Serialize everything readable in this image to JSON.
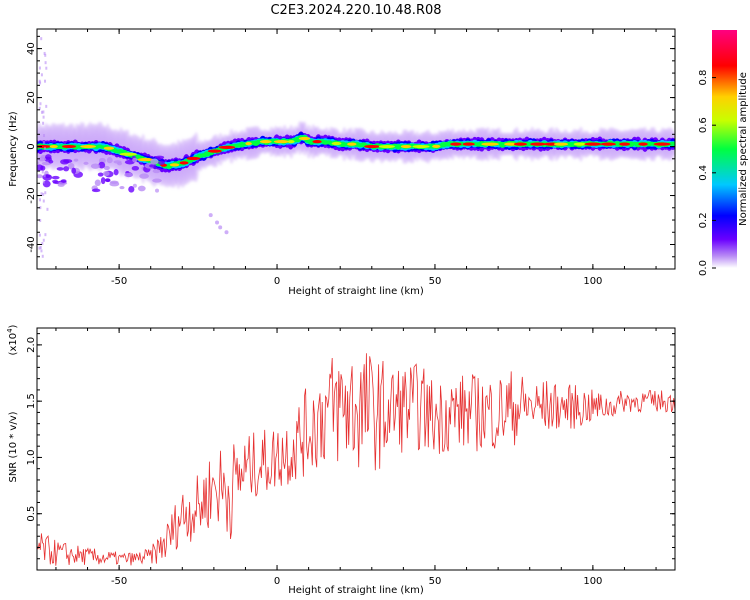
{
  "figure_title": "C2E3.2024.220.10.48.R08",
  "chart_data": [
    {
      "type": "heatmap",
      "title": "C2E3.2024.220.10.48.R08",
      "xlabel": "Height of straight line (km)",
      "ylabel": "Frequency (Hz)",
      "xlim": [
        -76,
        126
      ],
      "ylim": [
        -50,
        48
      ],
      "x_ticks": [
        -50,
        0,
        50,
        100
      ],
      "y_ticks": [
        -40,
        -20,
        0,
        20,
        40
      ],
      "colorbar": {
        "label": "Normalized spectral amplitude",
        "range": [
          0.0,
          1.0
        ],
        "ticks": [
          0.0,
          0.2,
          0.4,
          0.6,
          0.8
        ],
        "colormap": [
          "#ffffff",
          "#b98cf5",
          "#6a00ff",
          "#0000ff",
          "#00c8ff",
          "#00ff40",
          "#c8ff00",
          "#ffd000",
          "#ff0000",
          "#ff0080"
        ]
      },
      "ridge": {
        "x": [
          -76,
          -70,
          -65,
          -60,
          -55,
          -50,
          -45,
          -40,
          -35,
          -30,
          -25,
          -20,
          -15,
          -10,
          -5,
          0,
          5,
          8,
          10,
          15,
          20,
          25,
          30,
          35,
          40,
          45,
          50,
          55,
          60,
          65,
          70,
          75,
          80,
          85,
          90,
          95,
          100,
          105,
          110,
          115,
          120,
          126
        ],
        "freq": [
          0,
          0,
          0,
          0,
          0,
          -2,
          -4,
          -6,
          -8,
          -7,
          -4,
          -2,
          0,
          1,
          2,
          2,
          2,
          4,
          2,
          2,
          1,
          1,
          0,
          0,
          0,
          0,
          0,
          1,
          1,
          1,
          1,
          1,
          1,
          1,
          1,
          1,
          1,
          1,
          1,
          1,
          1,
          1
        ]
      },
      "grid": false
    },
    {
      "type": "line",
      "xlabel": "Height of straight line (km)",
      "ylabel": "SNR (10 * v/v)",
      "y_multiplier": "(x10",
      "y_multiplier_exp": "4",
      "xlim": [
        -76,
        126
      ],
      "ylim": [
        0.0,
        2.15
      ],
      "x_ticks": [
        -50,
        0,
        50,
        100
      ],
      "y_ticks": [
        0.5,
        1.0,
        1.5,
        2.0
      ],
      "series_color": "#e63030",
      "envelope": {
        "x": [
          -76,
          -70,
          -60,
          -50,
          -45,
          -40,
          -35,
          -30,
          -25,
          -20,
          -15,
          -10,
          -5,
          0,
          5,
          10,
          15,
          20,
          25,
          30,
          35,
          40,
          45,
          50,
          55,
          60,
          65,
          70,
          75,
          80,
          85,
          90,
          95,
          100,
          105,
          110,
          115,
          120,
          126
        ],
        "mean": [
          0.2,
          0.15,
          0.12,
          0.1,
          0.1,
          0.12,
          0.25,
          0.5,
          0.55,
          0.75,
          0.7,
          0.9,
          0.95,
          1.0,
          1.1,
          1.25,
          1.4,
          1.45,
          1.45,
          1.4,
          1.4,
          1.45,
          1.45,
          1.35,
          1.4,
          1.4,
          1.4,
          1.4,
          1.45,
          1.45,
          1.45,
          1.45,
          1.45,
          1.45,
          1.45,
          1.5,
          1.5,
          1.5,
          1.5
        ],
        "amp": [
          0.15,
          0.12,
          0.08,
          0.06,
          0.06,
          0.08,
          0.18,
          0.25,
          0.3,
          0.35,
          0.45,
          0.3,
          0.3,
          0.3,
          0.35,
          0.4,
          0.5,
          0.55,
          0.6,
          0.55,
          0.45,
          0.4,
          0.4,
          0.35,
          0.35,
          0.35,
          0.35,
          0.35,
          0.35,
          0.25,
          0.25,
          0.2,
          0.2,
          0.15,
          0.12,
          0.1,
          0.1,
          0.1,
          0.1
        ]
      },
      "grid": false
    }
  ]
}
